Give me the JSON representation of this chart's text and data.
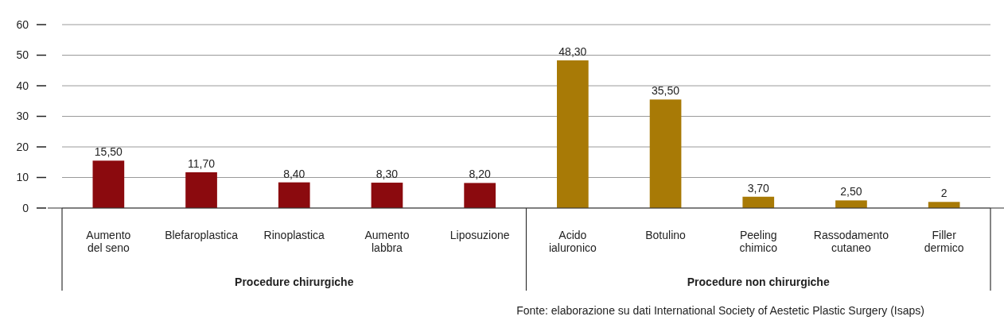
{
  "chart_data": {
    "type": "bar",
    "categories": [
      "Aumento\ndel seno",
      "Blefaroplastica",
      "Rinoplastica",
      "Aumento\nlabbra",
      "Liposuzione",
      "Acido\nialuronico",
      "Botulino",
      "Peeling\nchimico",
      "Rassodamento\ncutaneo",
      "Filler\ndermico"
    ],
    "values": [
      15.5,
      11.7,
      8.4,
      8.3,
      8.2,
      48.3,
      35.5,
      3.7,
      2.5,
      2
    ],
    "colors": [
      "#8b0a0e",
      "#8b0a0e",
      "#8b0a0e",
      "#8b0a0e",
      "#8b0a0e",
      "#a87a06",
      "#a87a06",
      "#a87a06",
      "#a87a06",
      "#a87a06"
    ],
    "value_labels": [
      "15,50",
      "11,70",
      "8,40",
      "8,30",
      "8,20",
      "48,30",
      "35,50",
      "3,70",
      "2,50",
      "2"
    ],
    "ylim": [
      0,
      60
    ],
    "yticks": [
      0,
      10,
      20,
      30,
      40,
      50,
      60
    ],
    "grid": "y",
    "annotations": [
      "Procedure chirurgiche",
      "Procedure non chirurgiche",
      "Fonte: elaborazione su dati International Society of Aestetic Plastic Surgery (Isaps)"
    ]
  }
}
